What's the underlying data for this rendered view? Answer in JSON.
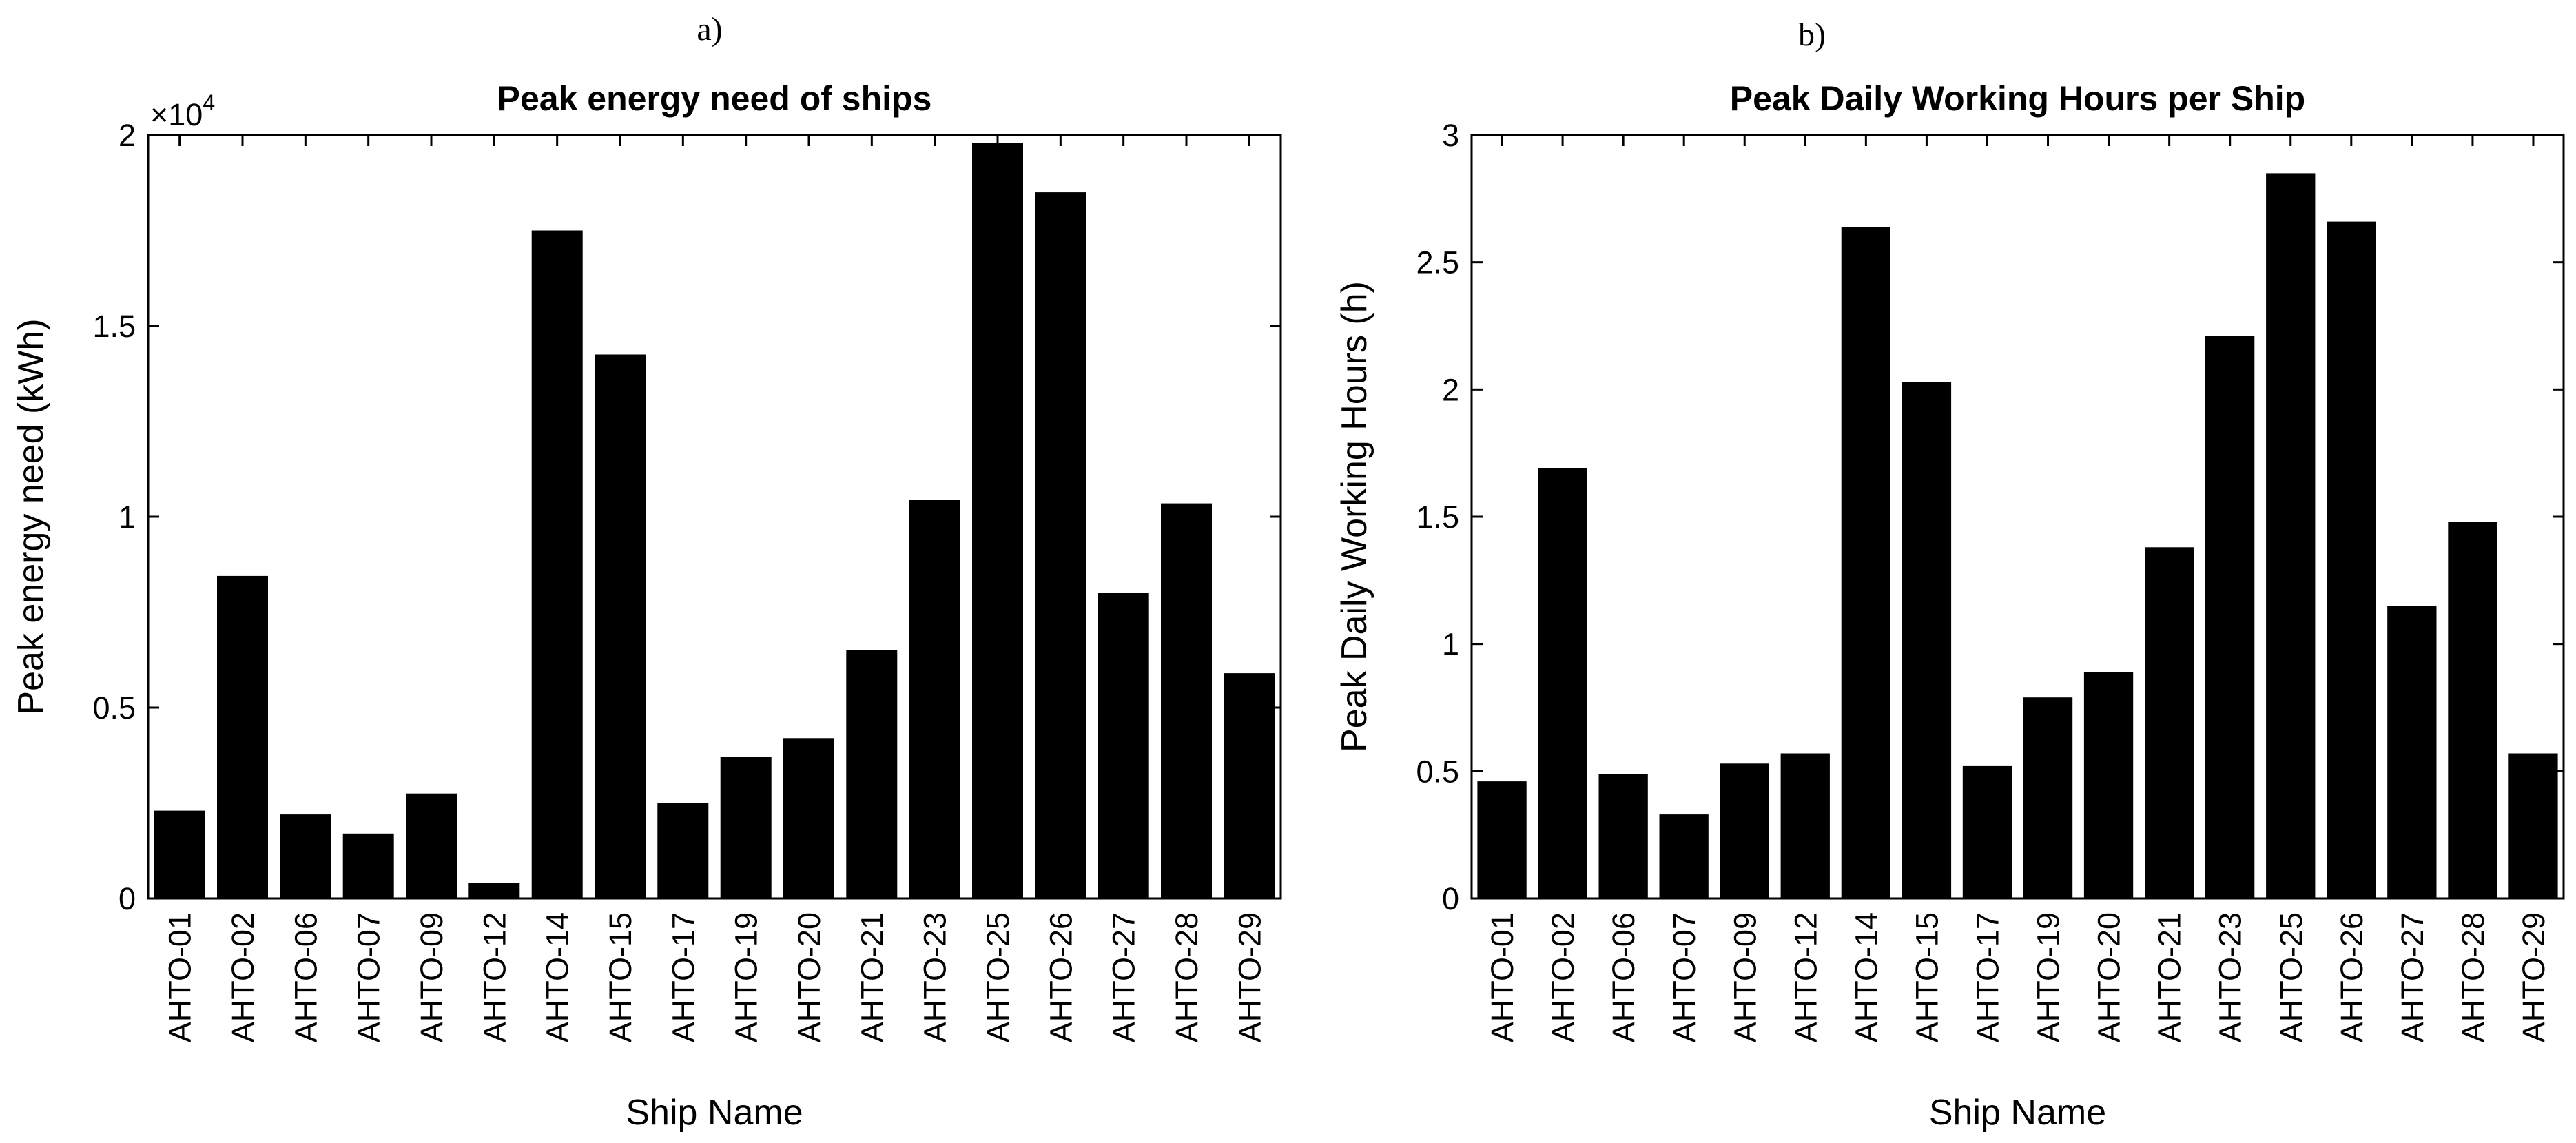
{
  "chart_data": [
    {
      "type": "bar",
      "panel_label": "a)",
      "title": "Peak energy need of ships",
      "xlabel": "Ship Name",
      "ylabel": "Peak energy need (kWh)",
      "y_multiplier": {
        "base": "×10",
        "exponent": "4"
      },
      "ylim": [
        0,
        20000
      ],
      "yticks": [
        0,
        5000,
        10000,
        15000,
        20000
      ],
      "ytick_labels": [
        "0",
        "0.5",
        "1",
        "1.5",
        "2"
      ],
      "grid": false,
      "bar_color": "#000000",
      "categories": [
        "AHTO-01",
        "AHTO-02",
        "AHTO-06",
        "AHTO-07",
        "AHTO-09",
        "AHTO-12",
        "AHTO-14",
        "AHTO-15",
        "AHTO-17",
        "AHTO-19",
        "AHTO-20",
        "AHTO-21",
        "AHTO-23",
        "AHTO-25",
        "AHTO-26",
        "AHTO-27",
        "AHTO-28",
        "AHTO-29"
      ],
      "values": [
        2300,
        8450,
        2200,
        1700,
        2750,
        400,
        17500,
        14250,
        2500,
        3700,
        4200,
        6500,
        10450,
        19800,
        18500,
        8000,
        10350,
        5900
      ]
    },
    {
      "type": "bar",
      "panel_label": "b)",
      "title": "Peak Daily Working Hours per Ship",
      "xlabel": "Ship Name",
      "ylabel": "Peak Daily Working Hours (h)",
      "ylim": [
        0,
        3
      ],
      "yticks": [
        0,
        0.5,
        1,
        1.5,
        2,
        2.5,
        3
      ],
      "ytick_labels": [
        "0",
        "0.5",
        "1",
        "1.5",
        "2",
        "2.5",
        "3"
      ],
      "grid": false,
      "bar_color": "#000000",
      "categories": [
        "AHTO-01",
        "AHTO-02",
        "AHTO-06",
        "AHTO-07",
        "AHTO-09",
        "AHTO-12",
        "AHTO-14",
        "AHTO-15",
        "AHTO-17",
        "AHTO-19",
        "AHTO-20",
        "AHTO-21",
        "AHTO-23",
        "AHTO-25",
        "AHTO-26",
        "AHTO-27",
        "AHTO-28",
        "AHTO-29"
      ],
      "values": [
        0.46,
        1.69,
        0.49,
        0.33,
        0.53,
        0.57,
        2.64,
        2.03,
        0.52,
        0.79,
        0.89,
        1.38,
        2.21,
        2.85,
        2.66,
        1.15,
        1.48,
        0.57
      ]
    }
  ]
}
